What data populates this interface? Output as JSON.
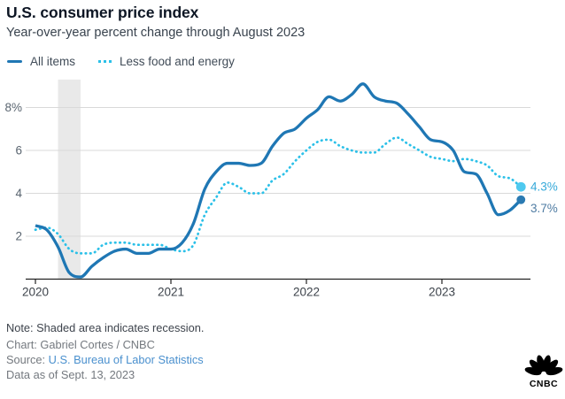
{
  "header": {
    "title": "U.S. consumer price index",
    "subtitle": "Year-over-year percent change through August 2023"
  },
  "legend": [
    {
      "label": "All items",
      "style": "solid",
      "color": "#1f77b4"
    },
    {
      "label": "Less food and energy",
      "style": "dotted",
      "color": "#2bc0e8"
    }
  ],
  "chart_data": {
    "type": "line",
    "x_unit": "month",
    "x_start": "2020-01",
    "x_end": "2023-08",
    "x_tick_labels": [
      "2020",
      "2021",
      "2022",
      "2023"
    ],
    "x_tick_month_indices": [
      0,
      12,
      24,
      36
    ],
    "y_ticks": [
      {
        "value": 8,
        "label": "8%"
      },
      {
        "value": 6,
        "label": "6"
      },
      {
        "value": 4,
        "label": "4"
      },
      {
        "value": 2,
        "label": "2"
      }
    ],
    "ylim": [
      0,
      9.3
    ],
    "grid": true,
    "series": [
      {
        "name": "All items",
        "style": "solid",
        "color": "#1f77b4",
        "dot_color": "#2a7ab2",
        "end_label": "3.7%",
        "end_label_color": "#4f7ca3",
        "values": [
          2.5,
          2.3,
          1.5,
          0.3,
          0.1,
          0.6,
          1.0,
          1.3,
          1.4,
          1.2,
          1.2,
          1.4,
          1.4,
          1.7,
          2.6,
          4.2,
          5.0,
          5.4,
          5.4,
          5.3,
          5.4,
          6.2,
          6.8,
          7.0,
          7.5,
          7.9,
          8.5,
          8.3,
          8.6,
          9.1,
          8.5,
          8.3,
          8.2,
          7.7,
          7.1,
          6.5,
          6.4,
          6.0,
          5.0,
          4.9,
          4.0,
          3.0,
          3.2,
          3.7
        ]
      },
      {
        "name": "Less food and energy",
        "style": "dotted",
        "color": "#2bc0e8",
        "dot_color": "#4fc9ef",
        "end_label": "4.3%",
        "end_label_color": "#36a9d9",
        "values": [
          2.3,
          2.4,
          2.1,
          1.4,
          1.2,
          1.2,
          1.6,
          1.7,
          1.7,
          1.6,
          1.6,
          1.6,
          1.4,
          1.3,
          1.6,
          3.0,
          3.8,
          4.5,
          4.3,
          4.0,
          4.0,
          4.6,
          4.9,
          5.5,
          6.0,
          6.4,
          6.5,
          6.2,
          6.0,
          5.9,
          5.9,
          6.3,
          6.6,
          6.3,
          6.0,
          5.7,
          5.6,
          5.5,
          5.6,
          5.5,
          5.3,
          4.8,
          4.7,
          4.3
        ]
      }
    ],
    "recession_band": {
      "from_month_index": 2,
      "to_month_index": 4,
      "color": "#e9e9e9"
    }
  },
  "footer": {
    "note": "Note: Shaded area indicates recession.",
    "credit": "Chart: Gabriel Cortes / CNBC",
    "source_prefix": "Source: ",
    "source_link": "U.S. Bureau of Labor Statistics",
    "data_as_of": "Data as of Sept. 13, 2023"
  },
  "logo": {
    "text": "CNBC"
  }
}
